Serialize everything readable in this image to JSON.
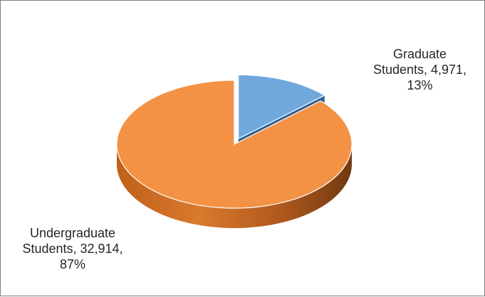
{
  "chart_data": {
    "type": "pie",
    "style": "3d-exploded",
    "slices": [
      {
        "name": "Graduate Students",
        "value": 4971,
        "percent": 13,
        "color": "#6fa8dc",
        "label_lines": [
          "Graduate",
          "Students, 4,971,",
          "13%"
        ]
      },
      {
        "name": "Undergraduate Students",
        "value": 32914,
        "percent": 87,
        "color": "#f39244",
        "label_lines": [
          "Undergraduate",
          "Students, 32,914,",
          "87%"
        ]
      }
    ]
  }
}
